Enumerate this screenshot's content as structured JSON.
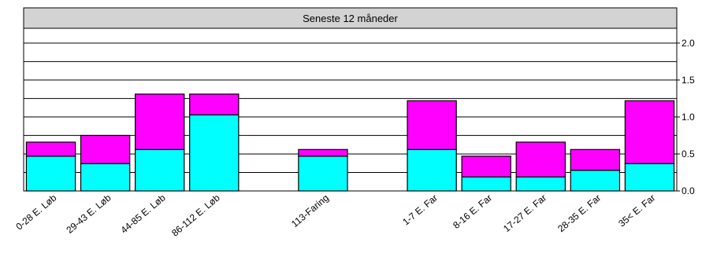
{
  "chart_data": {
    "type": "bar",
    "stacked": true,
    "title": "Seneste 12 måneder",
    "xlabel": "",
    "ylabel": "",
    "ylim": [
      0,
      2.2
    ],
    "yticks": [
      "0.0",
      "0.5",
      "1.0",
      "1.5",
      "2.0"
    ],
    "grid": true,
    "y_axis_side": "right",
    "categories": [
      "0-28 E. Løb",
      "29-43 E. Løb",
      "44-85 E. Løb",
      "86-112 E. Løb",
      "",
      "113-Faring",
      "",
      "1-7 E. Far",
      "8-16 E. Far",
      "17-27 E. Far",
      "28-35 E. Far",
      "35< E. Far"
    ],
    "series": [
      {
        "color": "#00FFFF",
        "values": [
          0.47,
          0.37,
          0.56,
          1.03,
          null,
          0.47,
          null,
          0.56,
          0.19,
          0.19,
          0.28,
          0.37
        ]
      },
      {
        "color": "#FF00FF",
        "values": [
          0.19,
          0.38,
          0.75,
          0.28,
          null,
          0.09,
          null,
          0.66,
          0.28,
          0.47,
          0.28,
          0.85
        ]
      }
    ],
    "colors": {
      "title_band": "#D3D3D3",
      "grid": "#000000",
      "bar_edge": "#000000"
    }
  }
}
